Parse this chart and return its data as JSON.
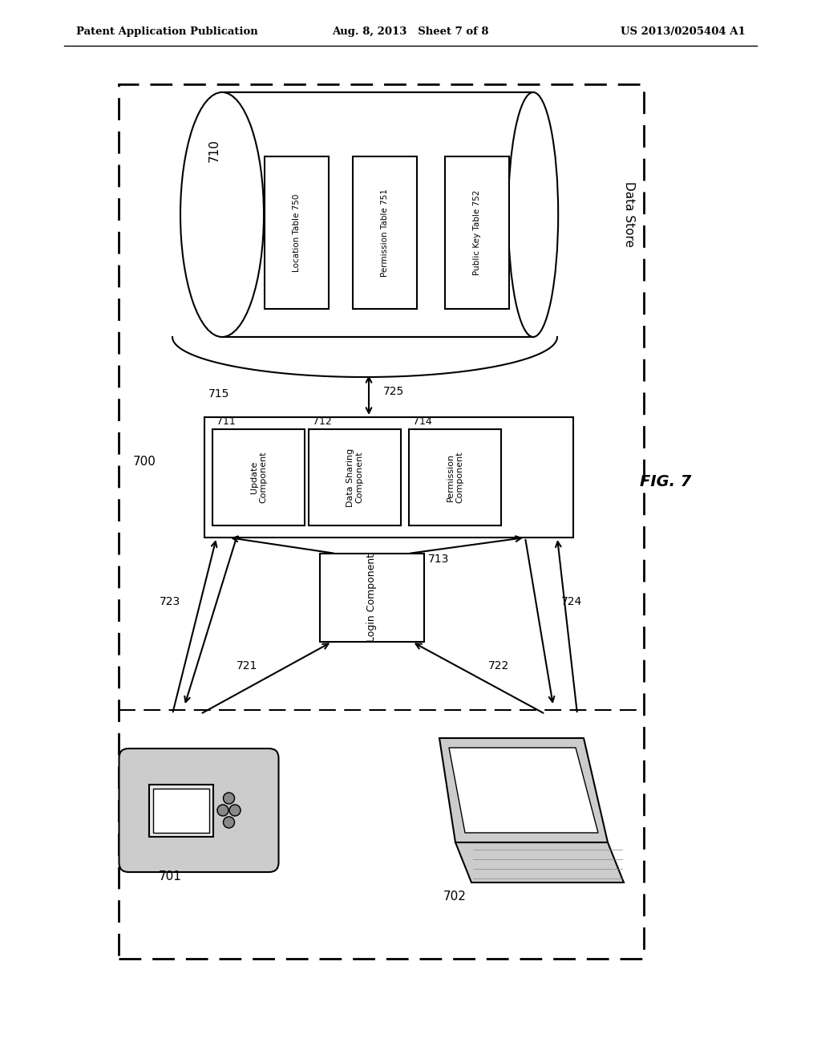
{
  "header_left": "Patent Application Publication",
  "header_center": "Aug. 8, 2013   Sheet 7 of 8",
  "header_right": "US 2013/0205404 A1",
  "fig_label": "FIG. 7",
  "outer_box_label": "700",
  "datastore_label": "Data Store",
  "datastore_num": "710",
  "server_box_num": "715",
  "table_boxes": [
    {
      "label": "Location Table 750"
    },
    {
      "label": "Permission Table 751"
    },
    {
      "label": "Public Key Table 752"
    }
  ],
  "component_boxes": [
    {
      "label": "Update\nComponent",
      "num": "711"
    },
    {
      "label": "Data Sharing\nComponent",
      "num": "712"
    },
    {
      "label": "Permission\nComponent",
      "num": "714"
    }
  ],
  "login_label": "Login Component",
  "login_num": "713",
  "device1_label": "701",
  "device2_label": "702",
  "bg_color": "#ffffff"
}
